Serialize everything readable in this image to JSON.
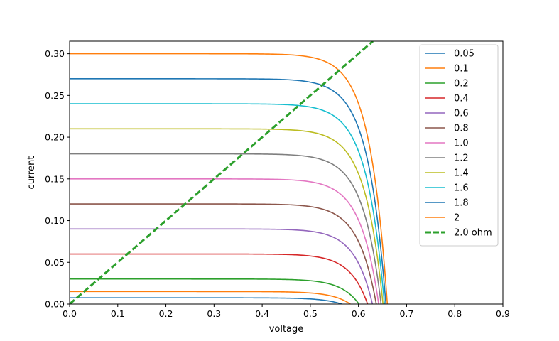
{
  "chart_data": {
    "type": "line",
    "title": "",
    "xlabel": "voltage",
    "ylabel": "current",
    "xlim": [
      0.0,
      0.9
    ],
    "ylim": [
      0.0,
      0.315
    ],
    "x_ticks": [
      "0.0",
      "0.1",
      "0.2",
      "0.3",
      "0.4",
      "0.5",
      "0.6",
      "0.7",
      "0.8",
      "0.9"
    ],
    "y_ticks": [
      "0.00",
      "0.05",
      "0.10",
      "0.15",
      "0.20",
      "0.25",
      "0.30"
    ],
    "grid": false,
    "legend_position": "top-right",
    "series": [
      {
        "name": "0.05",
        "color": "#1f77b4",
        "isc": 0.0075,
        "voc": 0.565,
        "knee": 0.43
      },
      {
        "name": "0.1",
        "color": "#ff7f0e",
        "isc": 0.015,
        "voc": 0.583,
        "knee": 0.45
      },
      {
        "name": "0.2",
        "color": "#2ca02c",
        "isc": 0.03,
        "voc": 0.601,
        "knee": 0.47
      },
      {
        "name": "0.4",
        "color": "#d62728",
        "isc": 0.06,
        "voc": 0.619,
        "knee": 0.49
      },
      {
        "name": "0.6",
        "color": "#9467bd",
        "isc": 0.09,
        "voc": 0.629,
        "knee": 0.5
      },
      {
        "name": "0.8",
        "color": "#8c564b",
        "isc": 0.12,
        "voc": 0.637,
        "knee": 0.505
      },
      {
        "name": "1.0",
        "color": "#e377c2",
        "isc": 0.15,
        "voc": 0.642,
        "knee": 0.51
      },
      {
        "name": "1.2",
        "color": "#7f7f7f",
        "isc": 0.18,
        "voc": 0.647,
        "knee": 0.515
      },
      {
        "name": "1.4",
        "color": "#bcbd22",
        "isc": 0.21,
        "voc": 0.651,
        "knee": 0.52
      },
      {
        "name": "1.6",
        "color": "#17becf",
        "isc": 0.24,
        "voc": 0.654,
        "knee": 0.523
      },
      {
        "name": "1.8",
        "color": "#1f77b4",
        "isc": 0.27,
        "voc": 0.657,
        "knee": 0.526
      },
      {
        "name": "2",
        "color": "#ff7f0e",
        "isc": 0.3,
        "voc": 0.66,
        "knee": 0.53
      }
    ],
    "load_line": {
      "name": "2.0 ohm",
      "color": "#2ca02c",
      "resistance_ohm": 2.0,
      "dashed": true
    }
  }
}
